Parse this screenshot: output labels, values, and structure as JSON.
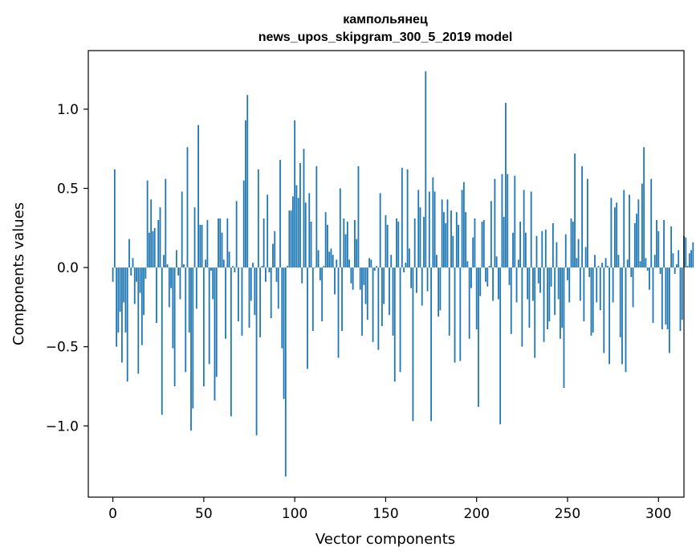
{
  "chart_data": {
    "type": "bar",
    "title": "кампольянец",
    "title_line1": "кампольянец",
    "title_line2": "news_upos_skipgram_300_5_2019 model",
    "xlabel": "Vector components",
    "ylabel": "Components values",
    "xlim": [
      -13.5,
      314
    ],
    "ylim": [
      -1.45,
      1.37
    ],
    "xticks": [
      0,
      50,
      100,
      150,
      200,
      250,
      300
    ],
    "xtick_labels": [
      "0",
      "50",
      "100",
      "150",
      "200",
      "250",
      "300"
    ],
    "yticks": [
      -1.0,
      -0.5,
      0.0,
      0.5,
      1.0
    ],
    "ytick_labels": [
      "−1.0",
      "−0.5",
      "0.0",
      "0.5",
      "1.0"
    ],
    "bar_color": "#1f77b4",
    "grid": false,
    "values": [
      -0.09,
      0.62,
      -0.5,
      -0.41,
      -0.28,
      -0.6,
      -0.22,
      -0.41,
      -0.72,
      0.18,
      -0.05,
      0.06,
      -0.23,
      -0.09,
      -0.67,
      -0.16,
      -0.49,
      -0.3,
      -0.07,
      0.55,
      0.22,
      0.43,
      0.23,
      0.25,
      -0.35,
      0.3,
      0.38,
      -0.93,
      0.08,
      0.56,
      0.02,
      -0.25,
      -0.13,
      -0.51,
      -0.75,
      0.11,
      -0.05,
      -0.2,
      0.48,
      0.02,
      -0.66,
      0.76,
      -0.41,
      -1.03,
      -0.89,
      0.38,
      -0.26,
      0.9,
      0.27,
      0.27,
      -0.75,
      0.05,
      0.3,
      -0.61,
      -0.02,
      -0.2,
      -0.84,
      -0.69,
      0.31,
      0.31,
      0.22,
      0.05,
      -0.45,
      0.31,
      0.1,
      -0.94,
      0.01,
      -0.03,
      0.42,
      -0.34,
      0.0,
      -0.43,
      0.55,
      0.93,
      1.09,
      -0.38,
      -0.21,
      0.03,
      -0.3,
      -1.06,
      0.62,
      -0.44,
      0.01,
      0.31,
      -0.09,
      0.46,
      -0.03,
      -0.32,
      0.15,
      0.23,
      -0.09,
      -0.26,
      0.68,
      -0.51,
      -0.83,
      -1.32,
      0.01,
      0.36,
      0.36,
      0.45,
      0.93,
      0.52,
      0.44,
      0.66,
      -0.1,
      0.75,
      0.41,
      -0.64,
      0.47,
      0.29,
      -0.4,
      0.0,
      0.64,
      0.11,
      -0.08,
      -0.34,
      0.01,
      0.35,
      0.27,
      0.1,
      0.12,
      0.08,
      -0.17,
      0.05,
      -0.57,
      0.5,
      -0.4,
      0.31,
      0.21,
      0.29,
      0.05,
      -0.1,
      -0.14,
      0.3,
      0.18,
      0.64,
      -0.14,
      -0.43,
      -0.11,
      -0.23,
      -0.33,
      0.06,
      0.05,
      -0.47,
      -0.02,
      0.01,
      -0.52,
      0.47,
      -0.37,
      -0.23,
      0.33,
      0.27,
      -0.3,
      0.08,
      -0.43,
      -0.72,
      0.31,
      0.29,
      -0.66,
      0.63,
      -0.03,
      0.03,
      0.62,
      0.12,
      -0.13,
      -0.97,
      0.31,
      -0.16,
      0.49,
      0.38,
      -0.24,
      0.32,
      1.24,
      -0.15,
      0.48,
      -0.97,
      0.57,
      0.48,
      0.08,
      -0.31,
      -0.27,
      0.43,
      0.35,
      0.28,
      0.43,
      -0.43,
      0.36,
      0.2,
      -0.6,
      0.35,
      0.27,
      -0.59,
      0.49,
      0.54,
      0.35,
      0.04,
      -0.45,
      -0.13,
      0.19,
      0.31,
      -0.39,
      -0.88,
      -0.18,
      0.29,
      0.3,
      -0.09,
      -0.12,
      0.01,
      0.42,
      -0.21,
      0.56,
      0.07,
      -0.2,
      -0.99,
      0.59,
      0.32,
      1.04,
      0.59,
      -0.11,
      -0.42,
      0.22,
      0.58,
      -0.22,
      0.05,
      0.29,
      -0.5,
      0.49,
      0.22,
      -0.2,
      -0.38,
      0.48,
      -0.21,
      -0.57,
      0.2,
      -0.1,
      -0.16,
      0.23,
      -0.47,
      0.24,
      -0.39,
      -0.34,
      -0.12,
      0.28,
      -0.3,
      0.16,
      -0.2,
      -0.45,
      -0.38,
      -0.76,
      0.21,
      -0.08,
      -0.22,
      0.31,
      0.29,
      0.72,
      0.06,
      0.18,
      -0.21,
      0.64,
      -0.34,
      0.13,
      0.56,
      -0.06,
      -0.43,
      -0.41,
      0.08,
      -0.22,
      0.01,
      -0.27,
      0.03,
      -0.54,
      0.06,
      0.01,
      -0.61,
      0.44,
      -0.22,
      0.38,
      0.41,
      0.08,
      -0.44,
      -0.61,
      0.49,
      -0.66,
      0.05,
      0.46,
      -0.06,
      -0.25,
      0.28,
      0.34,
      0.43,
      0.04,
      0.53,
      0.76,
      0.06,
      -0.02,
      -0.14,
      0.56,
      -0.35,
      0.08,
      0.3,
      0.23,
      -0.04,
      -0.39,
      0.3,
      -0.36,
      -0.39,
      -0.54,
      0.26,
      0.09,
      -0.04,
      0.02,
      0.11,
      -0.4,
      -0.33,
      0.2,
      0.19,
      0.01,
      0.09,
      0.11,
      0.16
    ]
  }
}
